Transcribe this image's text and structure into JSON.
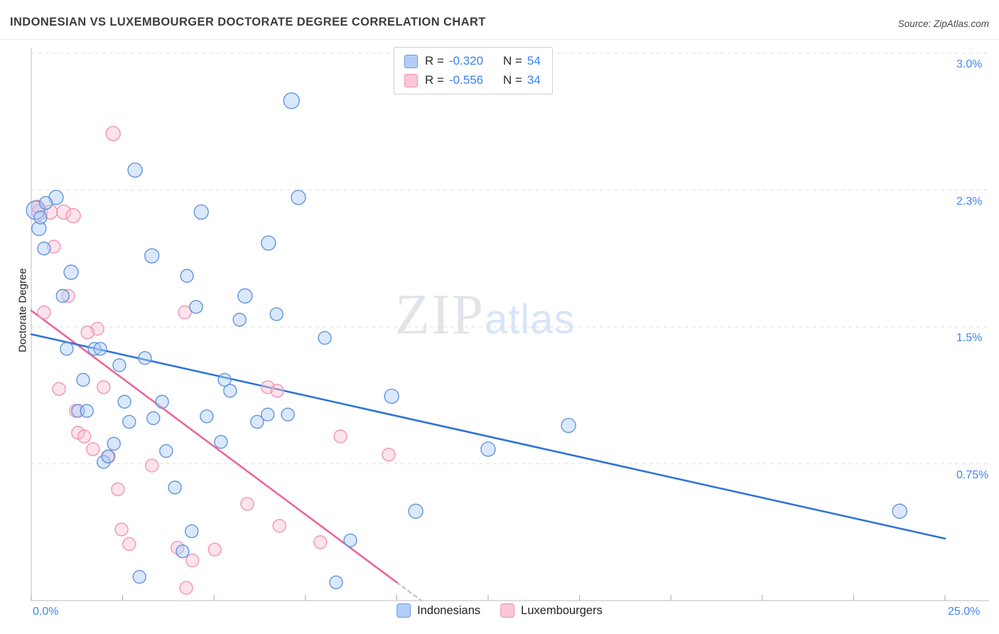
{
  "header": {
    "title": "INDONESIAN VS LUXEMBOURGER DOCTORATE DEGREE CORRELATION CHART",
    "source": "Source: ZipAtlas.com"
  },
  "watermark": {
    "zip": "ZIP",
    "atlas": "atlas"
  },
  "chart_data": {
    "type": "scatter",
    "title": "INDONESIAN VS LUXEMBOURGER DOCTORATE DEGREE CORRELATION CHART",
    "xlabel": "",
    "ylabel": "Doctorate Degree",
    "x_range": [
      0,
      25
    ],
    "y_range": [
      0,
      3.05
    ],
    "x_unit": "%",
    "y_unit": "%",
    "grid": "horizontal-dashed",
    "y_ticks": [
      {
        "value": 3.0,
        "label": "3.0%"
      },
      {
        "value": 2.25,
        "label": "2.3%"
      },
      {
        "value": 1.5,
        "label": "1.5%"
      },
      {
        "value": 0.75,
        "label": "0.75%"
      }
    ],
    "x_axis_labels": [
      "0.0%",
      "25.0%"
    ],
    "correlation": [
      {
        "series": "Indonesians",
        "r_label": "R =",
        "r_value": "-0.320",
        "n_label": "N =",
        "n_value": "54"
      },
      {
        "series": "Luxembourgers",
        "r_label": "R =",
        "r_value": "-0.556",
        "n_label": "N =",
        "n_value": "34"
      }
    ],
    "legend": [
      {
        "label": "Indonesians",
        "fill": "#AECBFA",
        "stroke": "#5B8FD9"
      },
      {
        "label": "Luxembourgers",
        "fill": "#F9C2D4",
        "stroke": "#EF8FB0"
      }
    ],
    "series": [
      {
        "name": "Indonesians",
        "fill": "#AECBFA",
        "stroke": "#5B8FD9",
        "points": [
          [
            7.12,
            2.74,
            11
          ],
          [
            2.84,
            2.36,
            10
          ],
          [
            0.68,
            2.21,
            10
          ],
          [
            7.31,
            2.21,
            10
          ],
          [
            4.65,
            2.13,
            10
          ],
          [
            0.12,
            2.14,
            13
          ],
          [
            0.21,
            2.04,
            10
          ],
          [
            0.35,
            1.93,
            9
          ],
          [
            0.25,
            2.1,
            9
          ],
          [
            0.4,
            2.18,
            9
          ],
          [
            6.49,
            1.96,
            10
          ],
          [
            3.3,
            1.89,
            10
          ],
          [
            1.09,
            1.8,
            10
          ],
          [
            4.26,
            1.78,
            9
          ],
          [
            5.85,
            1.67,
            10
          ],
          [
            4.51,
            1.61,
            9
          ],
          [
            0.86,
            1.67,
            9
          ],
          [
            6.71,
            1.57,
            9
          ],
          [
            5.7,
            1.54,
            9
          ],
          [
            8.03,
            1.44,
            9
          ],
          [
            0.97,
            1.38,
            9
          ],
          [
            1.73,
            1.38,
            9
          ],
          [
            1.89,
            1.38,
            9
          ],
          [
            3.11,
            1.33,
            9
          ],
          [
            2.41,
            1.29,
            9
          ],
          [
            5.29,
            1.21,
            9
          ],
          [
            1.42,
            1.21,
            9
          ],
          [
            5.44,
            1.15,
            9
          ],
          [
            9.86,
            1.12,
            10
          ],
          [
            2.55,
            1.09,
            9
          ],
          [
            3.58,
            1.09,
            9
          ],
          [
            1.28,
            1.04,
            9
          ],
          [
            1.52,
            1.04,
            9
          ],
          [
            4.8,
            1.01,
            9
          ],
          [
            6.18,
            0.98,
            9
          ],
          [
            6.47,
            1.02,
            9
          ],
          [
            7.02,
            1.02,
            9
          ],
          [
            3.34,
            1.0,
            9
          ],
          [
            2.68,
            0.98,
            9
          ],
          [
            14.7,
            0.96,
            10
          ],
          [
            5.19,
            0.87,
            9
          ],
          [
            2.26,
            0.86,
            9
          ],
          [
            12.5,
            0.83,
            10
          ],
          [
            3.69,
            0.82,
            9
          ],
          [
            1.98,
            0.76,
            9
          ],
          [
            2.1,
            0.79,
            9
          ],
          [
            3.93,
            0.62,
            9
          ],
          [
            10.52,
            0.49,
            10
          ],
          [
            4.39,
            0.38,
            9
          ],
          [
            23.76,
            0.49,
            10
          ],
          [
            4.14,
            0.27,
            9
          ],
          [
            8.73,
            0.33,
            9
          ],
          [
            2.96,
            0.13,
            9
          ],
          [
            8.34,
            0.1,
            9
          ]
        ]
      },
      {
        "name": "Luxembourgers",
        "fill": "#F9C2D4",
        "stroke": "#EF8FB0",
        "points": [
          [
            2.24,
            2.56,
            10
          ],
          [
            0.23,
            2.13,
            11
          ],
          [
            0.52,
            2.13,
            10
          ],
          [
            0.89,
            2.13,
            10
          ],
          [
            1.15,
            2.11,
            10
          ],
          [
            0.62,
            1.94,
            9
          ],
          [
            0.35,
            1.58,
            9
          ],
          [
            1.01,
            1.67,
            9
          ],
          [
            4.2,
            1.58,
            9
          ],
          [
            1.81,
            1.49,
            9
          ],
          [
            1.54,
            1.47,
            9
          ],
          [
            0.76,
            1.16,
            9
          ],
          [
            1.98,
            1.17,
            9
          ],
          [
            6.47,
            1.17,
            9
          ],
          [
            6.73,
            1.15,
            9
          ],
          [
            1.22,
            1.04,
            9
          ],
          [
            1.28,
            0.92,
            9
          ],
          [
            8.46,
            0.9,
            9
          ],
          [
            1.69,
            0.83,
            9
          ],
          [
            2.12,
            0.79,
            9
          ],
          [
            9.78,
            0.8,
            9
          ],
          [
            3.3,
            0.74,
            9
          ],
          [
            2.37,
            0.61,
            9
          ],
          [
            5.91,
            0.53,
            9
          ],
          [
            2.47,
            0.39,
            9
          ],
          [
            6.79,
            0.41,
            9
          ],
          [
            4.0,
            0.29,
            9
          ],
          [
            5.02,
            0.28,
            9
          ],
          [
            4.41,
            0.22,
            9
          ],
          [
            7.91,
            0.32,
            9
          ],
          [
            4.24,
            0.07,
            9
          ],
          [
            2.68,
            0.31,
            9
          ],
          [
            1.45,
            0.9,
            9
          ],
          [
            0.18,
            2.16,
            9
          ]
        ]
      }
    ],
    "trend_lines": [
      {
        "series": "Indonesians",
        "color": "#2E75D4",
        "x1": 0,
        "y1": 1.46,
        "x2": 25,
        "y2": 0.34,
        "style": "solid"
      },
      {
        "series": "Luxembourgers",
        "color": "#E9679B",
        "x1": 0,
        "y1": 1.59,
        "x2": 10.0,
        "y2": 0.1,
        "style": "solid"
      },
      {
        "series": "Luxembourgers-extension",
        "color": "#c9c9c9",
        "x1": 10.0,
        "y1": 0.1,
        "x2": 10.67,
        "y2": 0.0,
        "style": "dashed"
      }
    ],
    "colors": {
      "tick_label": "#4285F4",
      "grid": "#dedede",
      "axis": "#c9c9c9"
    },
    "legend_position": "bottom-center"
  }
}
